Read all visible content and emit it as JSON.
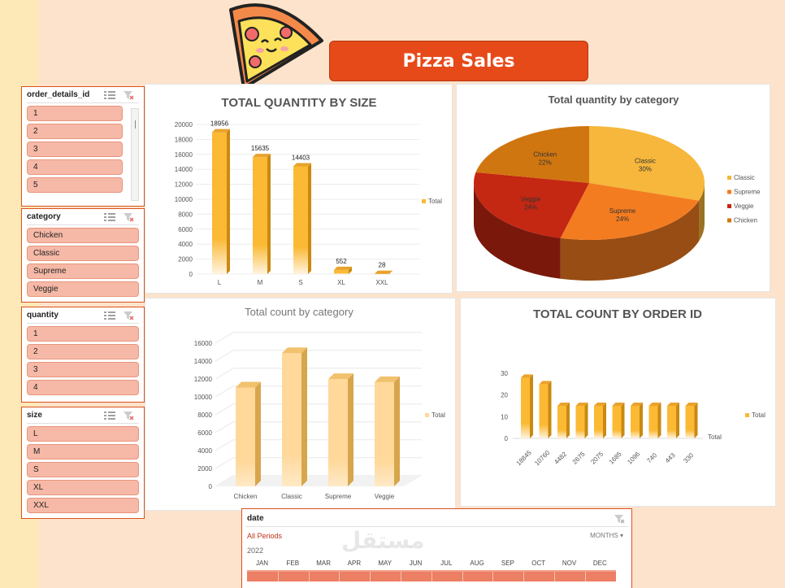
{
  "title": "Pizza Sales",
  "slicers": {
    "order_details_id": {
      "title": "order_details_id",
      "items": [
        "1",
        "2",
        "3",
        "4",
        "5"
      ]
    },
    "category": {
      "title": "category",
      "items": [
        "Chicken",
        "Classic",
        "Supreme",
        "Veggie"
      ]
    },
    "quantity": {
      "title": "quantity",
      "items": [
        "1",
        "2",
        "3",
        "4"
      ]
    },
    "size": {
      "title": "size",
      "items": [
        "L",
        "M",
        "S",
        "XL",
        "XXL"
      ]
    }
  },
  "date_slicer": {
    "title": "date",
    "period_label": "All Periods",
    "granularity": "MONTHS",
    "year": "2022",
    "months": [
      "JAN",
      "FEB",
      "MAR",
      "APR",
      "MAY",
      "JUN",
      "JUL",
      "AUG",
      "SEP",
      "OCT",
      "NOV",
      "DEC"
    ]
  },
  "watermark_text": "مستقل",
  "colors": {
    "accent": "#e64a19",
    "slicer_item": "#f6b9a7",
    "bar": "#fbb934",
    "bar_pale": "#ffd89a"
  },
  "chart_data": [
    {
      "type": "bar",
      "title": "TOTAL QUANTITY BY SIZE",
      "categories": [
        "L",
        "M",
        "S",
        "XL",
        "XXL"
      ],
      "series": [
        {
          "name": "Total",
          "values": [
            18956,
            15635,
            14403,
            552,
            28
          ]
        }
      ],
      "yticks": [
        "0",
        "2000",
        "4000",
        "6000",
        "8000",
        "10000",
        "12000",
        "14000",
        "16000",
        "18000",
        "20000"
      ],
      "ylim": [
        0,
        20000
      ],
      "data_labels": [
        "18956",
        "15635",
        "14403",
        "552",
        "28"
      ],
      "legend": "right"
    },
    {
      "type": "pie",
      "title": "Total quantity by category",
      "slices": [
        {
          "label": "Classic",
          "value": 30,
          "pct_label": "30%",
          "color": "#f6b73c"
        },
        {
          "label": "Supreme",
          "value": 24,
          "pct_label": "24%",
          "color": "#f47c20"
        },
        {
          "label": "Veggie",
          "value": 24,
          "pct_label": "24%",
          "color": "#c42712"
        },
        {
          "label": "Chicken",
          "value": 22,
          "pct_label": "22%",
          "color": "#d07610"
        }
      ],
      "legend": "right"
    },
    {
      "type": "bar",
      "title": "Total count by category",
      "categories": [
        "Chicken",
        "Classic",
        "Supreme",
        "Veggie"
      ],
      "series": [
        {
          "name": "Total",
          "values": [
            11050,
            14890,
            11987,
            11649
          ]
        }
      ],
      "yticks": [
        "0",
        "2000",
        "4000",
        "6000",
        "8000",
        "10000",
        "12000",
        "14000",
        "16000"
      ],
      "ylim": [
        0,
        16000
      ],
      "legend": "right"
    },
    {
      "type": "bar",
      "title": "TOTAL COUNT BY ORDER ID",
      "categories": [
        "18845",
        "10760",
        "4482",
        "2675",
        "2075",
        "1685",
        "1096",
        "740",
        "443",
        "330"
      ],
      "series": [
        {
          "name": "Total",
          "values": [
            28,
            25,
            15,
            15,
            15,
            15,
            15,
            15,
            15,
            15
          ]
        }
      ],
      "yticks": [
        "0",
        "10",
        "20",
        "30"
      ],
      "ylim": [
        0,
        30
      ],
      "axis_title": "Total",
      "legend": "right"
    }
  ]
}
